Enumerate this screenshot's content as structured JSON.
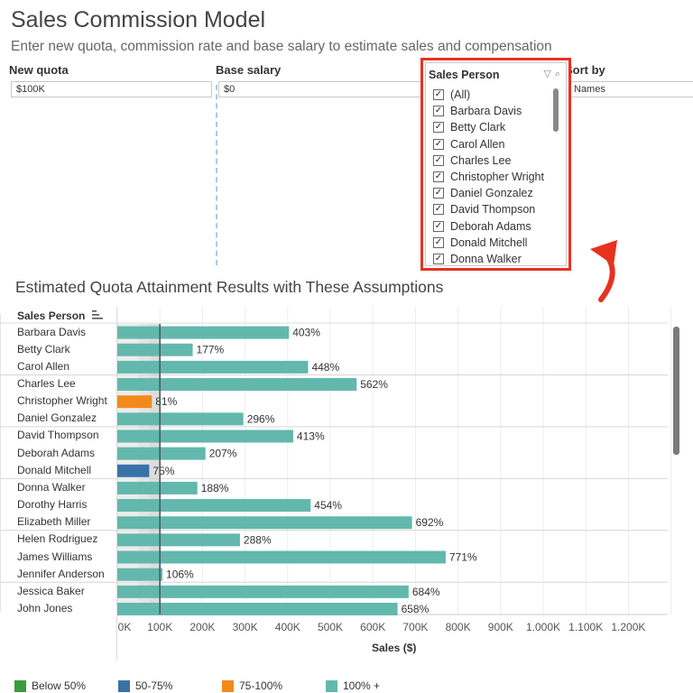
{
  "header": {
    "title": "Sales Commission Model",
    "subtitle": "Enter new quota, commission rate and base salary to estimate sales and compensation"
  },
  "params": {
    "quota_label": "New quota",
    "quota_value": "$100K",
    "base_label": "Base salary",
    "base_value": "$0",
    "sort_label": "Sort by",
    "sort_value": "Names"
  },
  "filter": {
    "title": "Sales Person",
    "items": [
      {
        "label": "(All)",
        "checked": true
      },
      {
        "label": "Barbara Davis",
        "checked": true
      },
      {
        "label": "Betty Clark",
        "checked": true
      },
      {
        "label": "Carol Allen",
        "checked": true
      },
      {
        "label": "Charles Lee",
        "checked": true
      },
      {
        "label": "Christopher Wright",
        "checked": true
      },
      {
        "label": "Daniel Gonzalez",
        "checked": true
      },
      {
        "label": "David Thompson",
        "checked": true
      },
      {
        "label": "Deborah Adams",
        "checked": true
      },
      {
        "label": "Donald Mitchell",
        "checked": true
      },
      {
        "label": "Donna Walker",
        "checked": true
      }
    ]
  },
  "chart": {
    "title": "Estimated Quota Attainment Results with These Assumptions",
    "column_header": "Sales Person",
    "axis_title": "Sales ($)"
  },
  "legend": [
    {
      "label": "Below 50%",
      "color": "#3a9b3a"
    },
    {
      "label": "50-75%",
      "color": "#3a72a8"
    },
    {
      "label": "75-100%",
      "color": "#f28a1b"
    },
    {
      "label": "100% +",
      "color": "#63b8ad"
    }
  ],
  "chart_data": {
    "type": "bar",
    "orientation": "horizontal",
    "quota_reference": 100,
    "xlim": [
      0,
      1300
    ],
    "x_unit": "K",
    "xticks": [
      "0K",
      "100K",
      "200K",
      "300K",
      "400K",
      "500K",
      "600K",
      "700K",
      "800K",
      "900K",
      "1.000K",
      "1.100K",
      "1.200K"
    ],
    "rows": [
      {
        "name": "Barbara Davis",
        "value": 403,
        "label": "403%",
        "band": "100% +"
      },
      {
        "name": "Betty Clark",
        "value": 177,
        "label": "177%",
        "band": "100% +"
      },
      {
        "name": "Carol Allen",
        "value": 448,
        "label": "448%",
        "band": "100% +"
      },
      {
        "name": "Charles Lee",
        "value": 562,
        "label": "562%",
        "band": "100% +"
      },
      {
        "name": "Christopher Wright",
        "value": 81,
        "label": "81%",
        "band": "75-100%"
      },
      {
        "name": "Daniel Gonzalez",
        "value": 296,
        "label": "296%",
        "band": "100% +"
      },
      {
        "name": "David Thompson",
        "value": 413,
        "label": "413%",
        "band": "100% +"
      },
      {
        "name": "Deborah Adams",
        "value": 207,
        "label": "207%",
        "band": "100% +"
      },
      {
        "name": "Donald Mitchell",
        "value": 75,
        "label": "75%",
        "band": "50-75%"
      },
      {
        "name": "Donna Walker",
        "value": 188,
        "label": "188%",
        "band": "100% +"
      },
      {
        "name": "Dorothy Harris",
        "value": 454,
        "label": "454%",
        "band": "100% +"
      },
      {
        "name": "Elizabeth Miller",
        "value": 692,
        "label": "692%",
        "band": "100% +"
      },
      {
        "name": "Helen Rodriguez",
        "value": 288,
        "label": "288%",
        "band": "100% +"
      },
      {
        "name": "James Williams",
        "value": 771,
        "label": "771%",
        "band": "100% +"
      },
      {
        "name": "Jennifer Anderson",
        "value": 106,
        "label": "106%",
        "band": "100% +"
      },
      {
        "name": "Jessica Baker",
        "value": 684,
        "label": "684%",
        "band": "100% +"
      },
      {
        "name": "John Jones",
        "value": 658,
        "label": "658%",
        "band": "100% +"
      }
    ]
  }
}
